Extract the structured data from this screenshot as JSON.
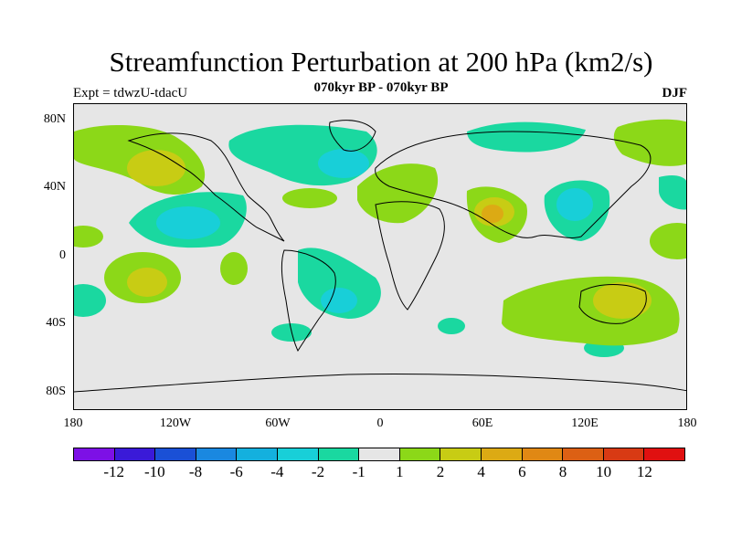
{
  "title": "Streamfunction Perturbation at 200 hPa (km2/s)",
  "subtitle": "070kyr BP - 070kyr BP",
  "left_label": "Expt = tdwzU-tdacU",
  "right_label": "DJF",
  "map": {
    "projection": "cylindrical equidistant",
    "lat_labels": [
      "80N",
      "40N",
      "0",
      "40S",
      "80S"
    ],
    "lon_labels": [
      "180",
      "120W",
      "60W",
      "0",
      "60E",
      "120E",
      "180"
    ],
    "background_color": "#e6e6e6"
  },
  "colorbar": {
    "colors": [
      "#7d10e6",
      "#3a1ad8",
      "#1a50d6",
      "#1a88e0",
      "#14b0de",
      "#18cfd8",
      "#1ad8a0",
      "#e6e6e6",
      "#8cd818",
      "#c8cc14",
      "#dcaa14",
      "#e08814",
      "#dc6014",
      "#d83a14",
      "#e01010"
    ],
    "labels": [
      "-12",
      "-10",
      "-8",
      "-6",
      "-4",
      "-2",
      "-1",
      "1",
      "2",
      "4",
      "6",
      "8",
      "10",
      "12"
    ]
  }
}
